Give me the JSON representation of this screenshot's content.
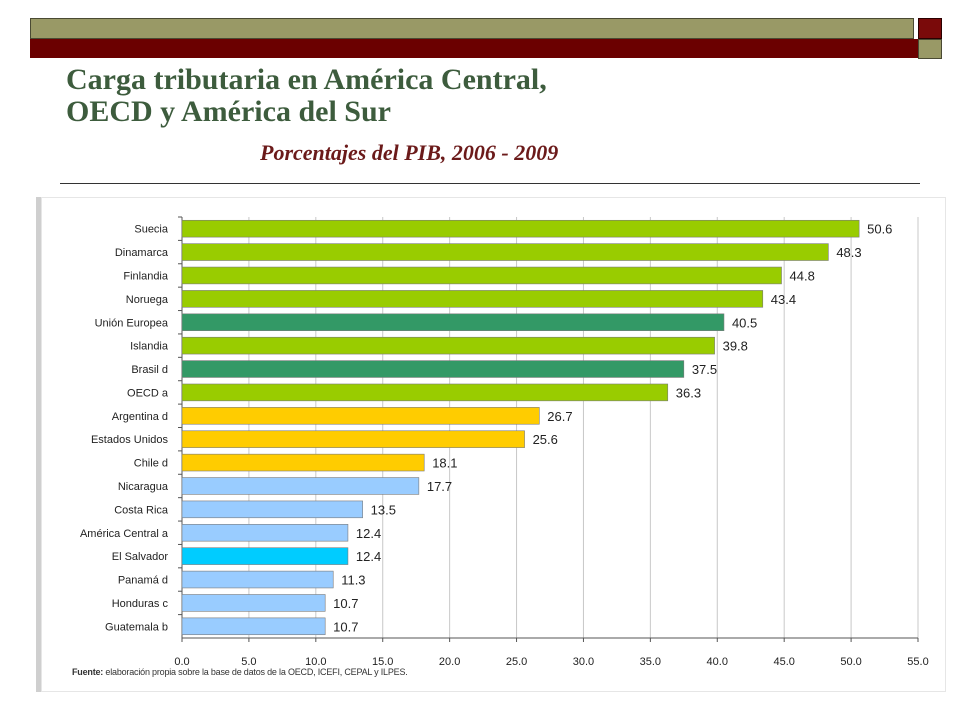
{
  "header": {
    "title_line1": "Carga tributaria en América Central,",
    "title_line2": "OECD y América del Sur",
    "subtitle": "Porcentajes del PIB, 2006 - 2009"
  },
  "footer": {
    "source_label": "Fuente:",
    "source_text": " elaboración propia sobre la base de datos de la OECD, ICEFI,  CEPAL y ILPES."
  },
  "colors": {
    "lime": "#99cc00",
    "teal": "#339966",
    "gold": "#ffcc00",
    "lightblue": "#99ccff",
    "cyan": "#00ccff",
    "olive_bar": "#999966",
    "maroon_bar": "#6b0000",
    "title": "#3d5c3d",
    "subtitle": "#6b1a1a"
  },
  "chart_data": {
    "type": "bar",
    "orientation": "horizontal",
    "title": "Carga tributaria en América Central, OECD y América del Sur",
    "xlabel": "",
    "ylabel": "",
    "xlim": [
      0,
      55
    ],
    "xticks": [
      "0.0",
      "5.0",
      "10.0",
      "15.0",
      "20.0",
      "25.0",
      "30.0",
      "35.0",
      "40.0",
      "45.0",
      "50.0",
      "55.0"
    ],
    "grid": true,
    "categories": [
      "Suecia",
      "Dinamarca",
      "Finlandia",
      "Noruega",
      "Unión Europea",
      "Islandia",
      "Brasil d",
      "OECD a",
      "Argentina d",
      "Estados Unidos",
      "Chile d",
      "Nicaragua",
      "Costa Rica",
      "América Central a",
      "El Salvador",
      "Panamá d",
      "Honduras c",
      "Guatemala b"
    ],
    "values": [
      50.6,
      48.3,
      44.8,
      43.4,
      40.5,
      39.8,
      37.5,
      36.3,
      26.7,
      25.6,
      18.1,
      17.7,
      13.5,
      12.4,
      12.4,
      11.3,
      10.7,
      10.7
    ],
    "value_labels": [
      "50.6",
      "48.3",
      "44.8",
      "43.4",
      "40.5",
      "39.8",
      "37.5",
      "36.3",
      "26.7",
      "25.6",
      "18.1",
      "17.7",
      "13.5",
      "12.4",
      "12.4",
      "11.3",
      "10.7",
      "10.7"
    ],
    "bar_colors": [
      "#99cc00",
      "#99cc00",
      "#99cc00",
      "#99cc00",
      "#339966",
      "#99cc00",
      "#339966",
      "#99cc00",
      "#ffcc00",
      "#ffcc00",
      "#ffcc00",
      "#99ccff",
      "#99ccff",
      "#99ccff",
      "#00ccff",
      "#99ccff",
      "#99ccff",
      "#99ccff"
    ]
  }
}
